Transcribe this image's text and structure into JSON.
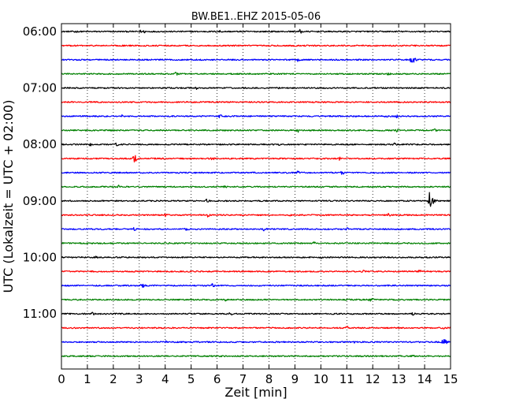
{
  "chart_data": {
    "type": "line",
    "title": "BW.BE1..EHZ 2015-05-06",
    "xlabel": "Zeit  [min]",
    "ylabel": "UTC (Lokalzeit = UTC + 02:00)",
    "xlim": [
      0,
      15
    ],
    "x_ticks": [
      "0",
      "1",
      "2",
      "3",
      "4",
      "5",
      "6",
      "7",
      "8",
      "9",
      "10",
      "11",
      "12",
      "13",
      "14",
      "15"
    ],
    "y_ticks": [
      {
        "label": "06:00",
        "row": 0
      },
      {
        "label": "07:00",
        "row": 4
      },
      {
        "label": "08:00",
        "row": 8
      },
      {
        "label": "09:00",
        "row": 12
      },
      {
        "label": "10:00",
        "row": 16
      },
      {
        "label": "11:00",
        "row": 20
      }
    ],
    "grid": "vertical dotted",
    "row_interval_min": 15,
    "colors": [
      "#000000",
      "#ff0000",
      "#0000ff",
      "#008000"
    ],
    "series": [
      {
        "start": "06:00",
        "color": "#000000",
        "events": [
          {
            "t": 0.5,
            "amp": 0.35
          },
          {
            "t": 3.0,
            "amp": 0.35
          },
          {
            "t": 3.2,
            "amp": 0.3
          },
          {
            "t": 6.1,
            "amp": 0.3
          },
          {
            "t": 9.2,
            "amp": 0.45
          }
        ]
      },
      {
        "start": "06:15",
        "color": "#ff0000",
        "events": []
      },
      {
        "start": "06:30",
        "color": "#0000ff",
        "events": [
          {
            "t": 9.1,
            "amp": 0.3
          },
          {
            "t": 13.5,
            "amp": 0.9
          }
        ]
      },
      {
        "start": "06:45",
        "color": "#008000",
        "events": [
          {
            "t": 4.4,
            "amp": 0.35
          },
          {
            "t": 12.6,
            "amp": 0.3
          }
        ]
      },
      {
        "start": "07:00",
        "color": "#000000",
        "events": [
          {
            "t": 5.2,
            "amp": 0.35
          },
          {
            "t": 8.3,
            "amp": 0.3
          }
        ]
      },
      {
        "start": "07:15",
        "color": "#ff0000",
        "events": []
      },
      {
        "start": "07:30",
        "color": "#0000ff",
        "events": [
          {
            "t": 2.3,
            "amp": 0.35
          },
          {
            "t": 6.1,
            "amp": 0.35
          },
          {
            "t": 12.5,
            "amp": 0.3
          },
          {
            "t": 12.9,
            "amp": 0.3
          }
        ]
      },
      {
        "start": "07:45",
        "color": "#008000",
        "events": [
          {
            "t": 9.1,
            "amp": 0.4
          },
          {
            "t": 12.9,
            "amp": 0.3
          },
          {
            "t": 14.4,
            "amp": 0.35
          }
        ]
      },
      {
        "start": "08:00",
        "color": "#000000",
        "events": [
          {
            "t": 1.1,
            "amp": 0.3
          },
          {
            "t": 2.1,
            "amp": 0.35
          },
          {
            "t": 8.4,
            "amp": 0.3
          },
          {
            "t": 12.8,
            "amp": 0.35
          }
        ]
      },
      {
        "start": "08:15",
        "color": "#ff0000",
        "events": [
          {
            "t": 2.8,
            "amp": 0.75
          },
          {
            "t": 5.8,
            "amp": 0.35
          },
          {
            "t": 10.7,
            "amp": 0.35
          }
        ]
      },
      {
        "start": "08:30",
        "color": "#0000ff",
        "events": [
          {
            "t": 9.1,
            "amp": 0.3
          },
          {
            "t": 10.8,
            "amp": 0.4
          }
        ]
      },
      {
        "start": "08:45",
        "color": "#008000",
        "events": [
          {
            "t": 2.2,
            "amp": 0.3
          },
          {
            "t": 6.3,
            "amp": 0.3
          }
        ]
      },
      {
        "start": "09:00",
        "color": "#000000",
        "events": [
          {
            "t": 5.6,
            "amp": 0.45
          },
          {
            "t": 14.2,
            "amp": 1.9
          }
        ]
      },
      {
        "start": "09:15",
        "color": "#ff0000",
        "events": [
          {
            "t": 4.0,
            "amp": 0.3
          },
          {
            "t": 5.6,
            "amp": 0.45
          },
          {
            "t": 8.8,
            "amp": 0.3
          },
          {
            "t": 12.6,
            "amp": 0.3
          }
        ]
      },
      {
        "start": "09:30",
        "color": "#0000ff",
        "events": [
          {
            "t": 2.8,
            "amp": 0.35
          },
          {
            "t": 4.8,
            "amp": 0.35
          },
          {
            "t": 7.8,
            "amp": 0.4
          },
          {
            "t": 11.0,
            "amp": 0.3
          }
        ]
      },
      {
        "start": "09:45",
        "color": "#008000",
        "events": [
          {
            "t": 9.7,
            "amp": 0.35
          }
        ]
      },
      {
        "start": "10:00",
        "color": "#000000",
        "events": [
          {
            "t": 1.3,
            "amp": 0.3
          },
          {
            "t": 10.0,
            "amp": 0.3
          }
        ]
      },
      {
        "start": "10:15",
        "color": "#ff0000",
        "events": [
          {
            "t": 11.6,
            "amp": 0.35
          },
          {
            "t": 13.8,
            "amp": 0.35
          }
        ]
      },
      {
        "start": "10:30",
        "color": "#0000ff",
        "events": [
          {
            "t": 3.1,
            "amp": 0.45
          },
          {
            "t": 5.8,
            "amp": 0.35
          }
        ]
      },
      {
        "start": "10:45",
        "color": "#008000",
        "events": [
          {
            "t": 6.3,
            "amp": 0.3
          },
          {
            "t": 11.9,
            "amp": 0.5
          }
        ]
      },
      {
        "start": "11:00",
        "color": "#000000",
        "events": [
          {
            "t": 1.2,
            "amp": 0.3
          },
          {
            "t": 6.5,
            "amp": 0.3
          },
          {
            "t": 13.5,
            "amp": 0.35
          }
        ]
      },
      {
        "start": "11:15",
        "color": "#ff0000",
        "events": [
          {
            "t": 11.0,
            "amp": 0.35
          },
          {
            "t": 14.7,
            "amp": 0.3
          }
        ]
      },
      {
        "start": "11:30",
        "color": "#0000ff",
        "events": [
          {
            "t": 4.0,
            "amp": 0.3
          },
          {
            "t": 11.3,
            "amp": 0.3
          },
          {
            "t": 14.7,
            "amp": 0.85
          }
        ]
      },
      {
        "start": "11:45",
        "color": "#008000",
        "events": [
          {
            "t": 13.5,
            "amp": 0.3
          }
        ]
      }
    ]
  }
}
